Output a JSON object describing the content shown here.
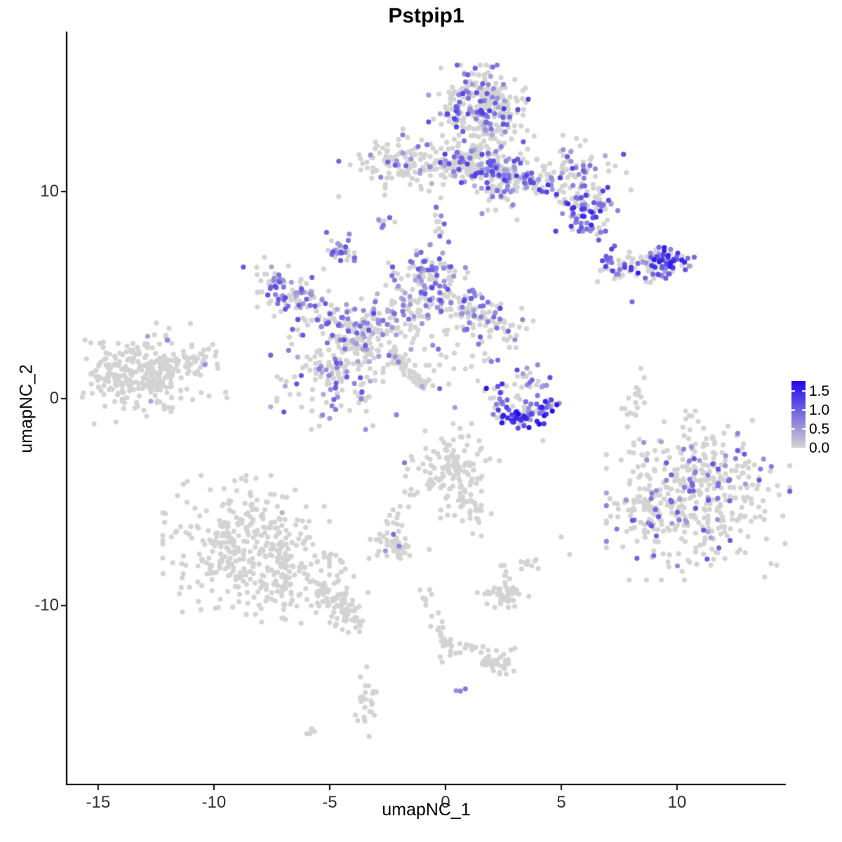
{
  "chart_data": {
    "type": "scatter",
    "title": "Pstpip1",
    "xlabel": "umapNC_1",
    "ylabel": "umapNC_2",
    "xlim": [
      -16.36,
      14.7
    ],
    "ylim": [
      -18.64,
      17.73
    ],
    "x_ticks": [
      "-15",
      "-10",
      "-5",
      "0",
      "5",
      "10"
    ],
    "x_tick_values": [
      -15,
      -10,
      -5,
      0,
      5,
      10
    ],
    "y_ticks": [
      "10",
      "0",
      "-10"
    ],
    "y_tick_values": [
      10,
      0,
      -10
    ],
    "grid": "off",
    "legend_position": "right",
    "legend": {
      "labels": [
        "1.5",
        "1.0",
        "0.5",
        "0.0"
      ],
      "values": [
        1.5,
        1.0,
        0.5,
        0.0
      ],
      "vmax": 1.75,
      "color_low": "#d3d3d3",
      "color_high": "#2108ee"
    },
    "point_radius_px": 3.6,
    "clusters": [
      {
        "name": "top-main-blob",
        "k": "g",
        "cx": 1.55,
        "cy": 13.9,
        "sx": 0.95,
        "sy": 0.92,
        "n": 300,
        "f": 0.27,
        "v0": 0.3,
        "v1": 1.3
      },
      {
        "name": "top-band",
        "k": "l",
        "x1": -0.3,
        "y1": 11.69,
        "x2": 4.21,
        "y2": 10.31,
        "w": 0.45,
        "n": 210,
        "f": 0.33,
        "v0": 0.3,
        "v1": 1.3
      },
      {
        "name": "top-neck",
        "k": "l",
        "x1": 1.97,
        "y1": 11.97,
        "x2": 2.42,
        "y2": 9.42,
        "w": 0.5,
        "n": 70,
        "f": 0.22,
        "v0": 0.3,
        "v1": 1.1
      },
      {
        "name": "top-right-wing",
        "k": "g",
        "cx": 5.61,
        "cy": 10.92,
        "sx": 1.1,
        "sy": 0.75,
        "n": 90,
        "f": 0.42,
        "v0": 0.3,
        "v1": 1.4
      },
      {
        "name": "top-right-dense",
        "k": "g",
        "cx": 6.0,
        "cy": 9.29,
        "sx": 0.6,
        "sy": 0.5,
        "n": 65,
        "f": 0.6,
        "v0": 0.5,
        "v1": 1.5
      },
      {
        "name": "top-right-tail",
        "k": "l",
        "x1": 5.3,
        "y1": 9.02,
        "x2": 6.67,
        "y2": 8.07,
        "w": 0.3,
        "n": 22,
        "f": 0.45,
        "v0": 0.4,
        "v1": 1.2
      },
      {
        "name": "top-left-small",
        "k": "g",
        "cx": -1.85,
        "cy": 11.39,
        "sx": 1.15,
        "sy": 0.68,
        "n": 115,
        "f": 0.17,
        "v0": 0.3,
        "v1": 1.1
      },
      {
        "name": "top-left-trail",
        "k": "l",
        "x1": -0.91,
        "y1": 11.12,
        "x2": 0.45,
        "y2": 10.85,
        "w": 0.22,
        "n": 16,
        "f": 0.25,
        "v0": 0.3,
        "v1": 0.9
      },
      {
        "name": "tiny-pair",
        "k": "g",
        "cx": -2.71,
        "cy": 8.51,
        "sx": 0.22,
        "sy": 0.22,
        "n": 7,
        "f": 0.75,
        "v0": 0.5,
        "v1": 1.0
      },
      {
        "name": "small-upper-mid",
        "k": "g",
        "cx": -4.48,
        "cy": 7.19,
        "sx": 0.38,
        "sy": 0.42,
        "n": 30,
        "f": 0.55,
        "v0": 0.4,
        "v1": 1.1
      },
      {
        "name": "mound-strand-up",
        "k": "l",
        "x1": -0.3,
        "y1": 9.69,
        "x2": -0.06,
        "y2": 7.56,
        "w": 0.2,
        "n": 13,
        "f": 0.35,
        "v0": 0.4,
        "v1": 1.0
      },
      {
        "name": "right-horizontal",
        "k": "l",
        "x1": 6.79,
        "y1": 6.47,
        "x2": 10.15,
        "y2": 6.71,
        "w": 0.35,
        "n": 85,
        "f": 0.45,
        "v0": 0.4,
        "v1": 1.4
      },
      {
        "name": "right-horizontal-dense",
        "k": "g",
        "cx": 9.55,
        "cy": 6.6,
        "sx": 0.6,
        "sy": 0.38,
        "n": 38,
        "f": 0.75,
        "v0": 0.6,
        "v1": 1.6
      },
      {
        "name": "right-horizontal-strand",
        "k": "l",
        "x1": 8.67,
        "y1": 5.56,
        "x2": 9.45,
        "y2": 6.17,
        "w": 0.18,
        "n": 9,
        "f": 0.5,
        "v0": 0.4,
        "v1": 1.1
      },
      {
        "name": "web-left-arm",
        "k": "l",
        "x1": -7.91,
        "y1": 5.69,
        "x2": -5.7,
        "y2": 4.31,
        "w": 0.5,
        "n": 95,
        "f": 0.5,
        "v0": 0.3,
        "v1": 1.2
      },
      {
        "name": "web-left-strand",
        "k": "l",
        "x1": -5.61,
        "y1": 4.31,
        "x2": -3.3,
        "y2": 3.29,
        "w": 0.4,
        "n": 55,
        "f": 0.42,
        "v0": 0.3,
        "v1": 1.1
      },
      {
        "name": "web-mound",
        "k": "g",
        "cx": -0.7,
        "cy": 5.19,
        "sx": 1.0,
        "sy": 0.95,
        "n": 135,
        "f": 0.42,
        "v0": 0.3,
        "v1": 1.2
      },
      {
        "name": "web-mound-peak",
        "k": "l",
        "x1": -0.97,
        "y1": 6.88,
        "x2": -0.55,
        "y2": 5.69,
        "w": 0.3,
        "n": 28,
        "f": 0.5,
        "v0": 0.4,
        "v1": 1.2
      },
      {
        "name": "web-right-arm",
        "k": "l",
        "x1": 0.39,
        "y1": 4.68,
        "x2": 2.7,
        "y2": 3.42,
        "w": 0.5,
        "n": 85,
        "f": 0.37,
        "v0": 0.3,
        "v1": 1.2
      },
      {
        "name": "web-junction",
        "k": "g",
        "cx": -3.48,
        "cy": 2.85,
        "sx": 0.85,
        "sy": 0.8,
        "n": 90,
        "f": 0.3,
        "v0": 0.3,
        "v1": 1.1
      },
      {
        "name": "web-lower-blob",
        "k": "g",
        "cx": -4.79,
        "cy": 1.39,
        "sx": 1.15,
        "sy": 1.2,
        "n": 165,
        "f": 0.25,
        "v0": 0.3,
        "v1": 1.1
      },
      {
        "name": "grey-streak",
        "k": "l",
        "x1": -2.36,
        "y1": 2.31,
        "x2": -0.97,
        "y2": 0.58,
        "w": 0.12,
        "n": 55,
        "f": 0.03,
        "v0": 0.3,
        "v1": 0.6
      },
      {
        "name": "web-scatter-right",
        "k": "g",
        "cx": 0.45,
        "cy": 1.97,
        "sx": 1.15,
        "sy": 1.0,
        "n": 42,
        "f": 0.3,
        "v0": 0.3,
        "v1": 1.0
      },
      {
        "name": "web-mid-connect",
        "k": "g",
        "cx": -2.21,
        "cy": 3.73,
        "sx": 0.7,
        "sy": 0.55,
        "n": 40,
        "f": 0.3,
        "v0": 0.3,
        "v1": 1.0
      },
      {
        "name": "crescent-left",
        "k": "l",
        "x1": 2.0,
        "y1": 0.37,
        "x2": 3.21,
        "y2": -1.19,
        "w": 0.3,
        "n": 42,
        "f": 0.55,
        "v0": 0.5,
        "v1": 1.7
      },
      {
        "name": "crescent-right",
        "k": "l",
        "x1": 3.21,
        "y1": -1.19,
        "x2": 4.67,
        "y2": -0.31,
        "w": 0.3,
        "n": 40,
        "f": 0.55,
        "v0": 0.5,
        "v1": 1.7
      },
      {
        "name": "crescent-top",
        "k": "g",
        "cx": 3.52,
        "cy": 0.78,
        "sx": 0.5,
        "sy": 0.4,
        "n": 24,
        "f": 0.5,
        "v0": 0.4,
        "v1": 1.2
      },
      {
        "name": "crescent-deep",
        "k": "g",
        "cx": 3.3,
        "cy": -1.08,
        "sx": 0.4,
        "sy": 0.2,
        "n": 16,
        "f": 0.9,
        "v0": 1.1,
        "v1": 1.75
      },
      {
        "name": "left-cluster-main",
        "k": "g",
        "cx": -12.91,
        "cy": 1.36,
        "sx": 1.3,
        "sy": 0.9,
        "rot": 12,
        "n": 250,
        "f": 0.014,
        "v0": 0.3,
        "v1": 0.7
      },
      {
        "name": "left-cluster-taper",
        "k": "l",
        "x1": -11.21,
        "y1": 1.73,
        "x2": -9.94,
        "y2": 2.17,
        "w": 0.28,
        "n": 22,
        "f": 0.05,
        "v0": 0.3,
        "v1": 0.6
      },
      {
        "name": "left-cluster-tip",
        "k": "g",
        "cx": -14.33,
        "cy": 0.85,
        "sx": 0.45,
        "sy": 0.55,
        "n": 35,
        "f": 0.0,
        "v0": 0.3,
        "v1": 0.6
      },
      {
        "name": "right-big-blob",
        "k": "g",
        "cx": 10.91,
        "cy": -4.68,
        "sx": 1.65,
        "sy": 1.7,
        "n": 430,
        "f": 0.14,
        "v0": 0.35,
        "v1": 1.1
      },
      {
        "name": "right-big-left-edge",
        "k": "g",
        "cx": 8.52,
        "cy": -4.64,
        "sx": 0.45,
        "sy": 1.3,
        "n": 50,
        "f": 0.18,
        "v0": 0.35,
        "v1": 1.0
      },
      {
        "name": "bottom-left-main",
        "k": "g",
        "cx": -8.61,
        "cy": -7.19,
        "sx": 1.5,
        "sy": 1.45,
        "n": 330,
        "f": 0.006,
        "v0": 0.25,
        "v1": 0.55
      },
      {
        "name": "bottom-left-right-lobe",
        "k": "g",
        "cx": -6.3,
        "cy": -8.81,
        "sx": 1.25,
        "sy": 0.85,
        "n": 120,
        "f": 0.008,
        "v0": 0.25,
        "v1": 0.5
      },
      {
        "name": "bottom-left-tail",
        "k": "l",
        "x1": -5.45,
        "y1": -9.39,
        "x2": -3.79,
        "y2": -10.81,
        "w": 0.35,
        "n": 65,
        "f": 0.0,
        "v0": 0.2,
        "v1": 0.4
      },
      {
        "name": "mid-small-blob",
        "k": "g",
        "cx": 0.21,
        "cy": -3.49,
        "sx": 0.9,
        "sy": 0.95,
        "n": 130,
        "f": 0.018,
        "v0": 0.5,
        "v1": 0.9
      },
      {
        "name": "mid-small-tail",
        "k": "l",
        "x1": 0.61,
        "y1": -4.98,
        "x2": 1.61,
        "y2": -6.1,
        "w": 0.25,
        "n": 26,
        "f": 0.0,
        "v0": 0.2,
        "v1": 0.4
      },
      {
        "name": "mid-left-trail",
        "k": "l",
        "x1": -1.36,
        "y1": -4.47,
        "x2": -2.48,
        "y2": -6.34,
        "w": 0.2,
        "n": 16,
        "f": 0.0,
        "v0": 0.2,
        "v1": 0.4
      },
      {
        "name": "small-mid-cluster",
        "k": "g",
        "cx": -2.24,
        "cy": -7.02,
        "sx": 0.42,
        "sy": 0.3,
        "n": 40,
        "f": 0.07,
        "v0": 0.5,
        "v1": 0.95
      },
      {
        "name": "bits-right",
        "k": "g",
        "cx": 3.55,
        "cy": -7.97,
        "sx": 0.3,
        "sy": 0.22,
        "n": 9,
        "f": 0.0,
        "v0": 0.2,
        "v1": 0.4
      },
      {
        "name": "vertical-bits",
        "k": "l",
        "x1": 2.52,
        "y1": -8.1,
        "x2": 2.73,
        "y2": -8.92,
        "w": 0.12,
        "n": 7,
        "f": 0.0,
        "v0": 0.2,
        "v1": 0.4
      },
      {
        "name": "small-blob-below",
        "k": "g",
        "cx": 2.48,
        "cy": -9.53,
        "sx": 0.5,
        "sy": 0.35,
        "n": 45,
        "f": 0.0,
        "v0": 0.2,
        "v1": 0.4
      },
      {
        "name": "trail-upper",
        "k": "l",
        "x1": -0.94,
        "y1": -9.22,
        "x2": -0.52,
        "y2": -10.51,
        "w": 0.15,
        "n": 10,
        "f": 0.0,
        "v0": 0.2,
        "v1": 0.4
      },
      {
        "name": "trail-lower",
        "k": "l",
        "x1": -0.52,
        "y1": -10.51,
        "x2": 0.06,
        "y2": -12.0,
        "w": 0.15,
        "n": 12,
        "f": 0.0,
        "v0": 0.2,
        "v1": 0.4
      },
      {
        "name": "trail-junction",
        "k": "g",
        "cx": 0.15,
        "cy": -12.1,
        "sx": 0.25,
        "sy": 0.3,
        "n": 13,
        "f": 0.0,
        "v0": 0.2,
        "v1": 0.4
      },
      {
        "name": "trail-right-strand",
        "k": "l",
        "x1": 0.52,
        "y1": -11.83,
        "x2": 1.3,
        "y2": -12.0,
        "w": 0.1,
        "n": 7,
        "f": 0.0,
        "v0": 0.2,
        "v1": 0.4
      },
      {
        "name": "trail-end-blob",
        "k": "g",
        "cx": 2.27,
        "cy": -12.64,
        "sx": 0.5,
        "sy": 0.35,
        "n": 38,
        "f": 0.0,
        "v0": 0.2,
        "v1": 0.4
      },
      {
        "name": "bottom-purple-pair",
        "k": "g",
        "cx": 0.7,
        "cy": -14.1,
        "sx": 0.12,
        "sy": 0.15,
        "n": 3,
        "f": 0.85,
        "v0": 0.5,
        "v1": 1.0
      },
      {
        "name": "bottom-vertical-cluster",
        "k": "g",
        "cx": -3.36,
        "cy": -14.51,
        "sx": 0.25,
        "sy": 0.75,
        "n": 26,
        "f": 0.0,
        "v0": 0.2,
        "v1": 0.4
      },
      {
        "name": "bottom-dash",
        "k": "l",
        "x1": -6.09,
        "y1": -16.2,
        "x2": -5.67,
        "y2": -16.0,
        "w": 0.1,
        "n": 5,
        "f": 0.0,
        "v0": 0.2,
        "v1": 0.4
      },
      {
        "name": "right-of-crescent-sparse",
        "k": "g",
        "cx": 8.18,
        "cy": 0.1,
        "sx": 0.25,
        "sy": 0.6,
        "n": 18,
        "f": 0.0,
        "v0": 0.2,
        "v1": 0.4
      }
    ],
    "singles": [
      {
        "x": 8.06,
        "y": 4.68,
        "v": 0.9
      },
      {
        "x": 4.21,
        "y": -2.03,
        "v": 0
      },
      {
        "x": 5.0,
        "y": -6.68,
        "v": 0
      },
      {
        "x": 5.36,
        "y": -7.53,
        "v": 0
      },
      {
        "x": -0.7,
        "y": -7.29,
        "v": 0
      }
    ]
  }
}
